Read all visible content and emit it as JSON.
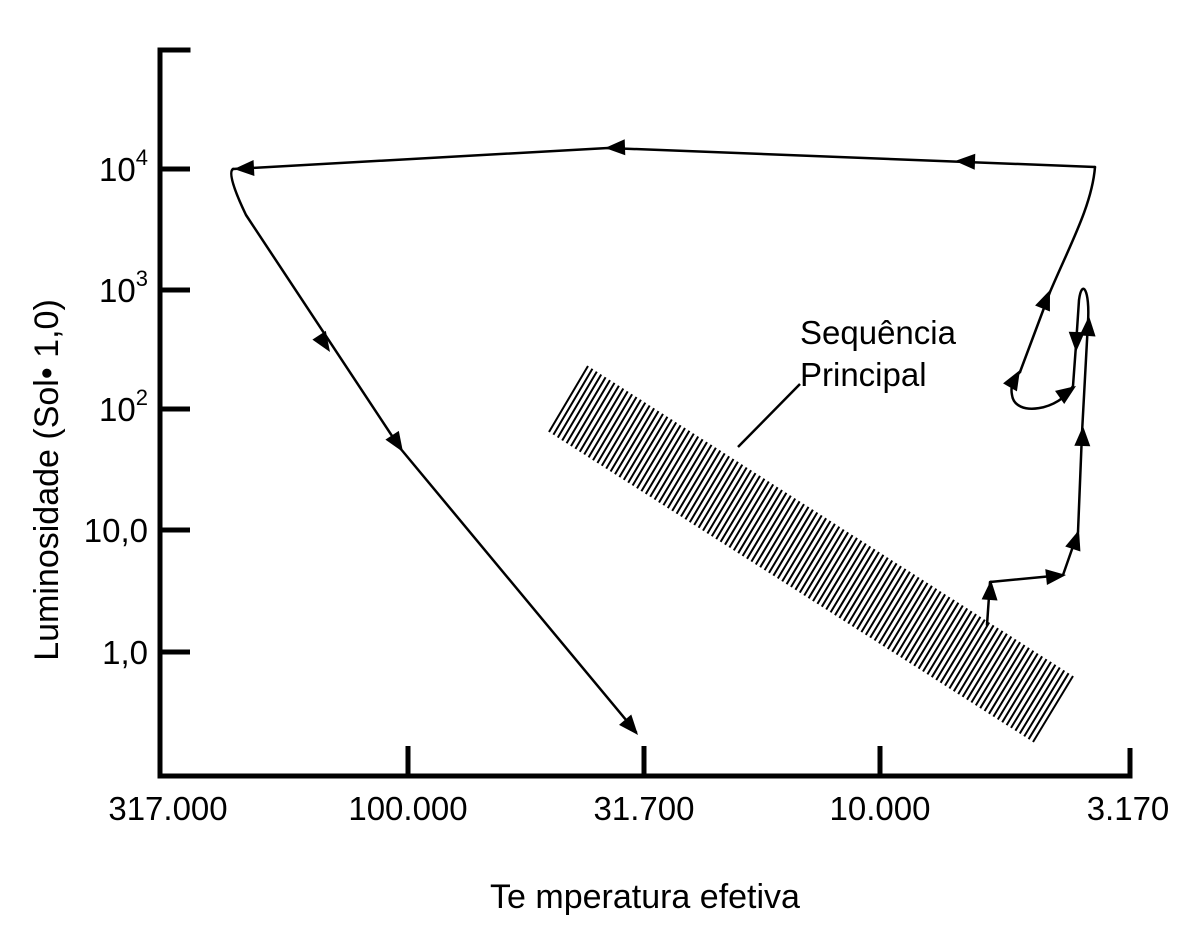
{
  "diagram": {
    "x_axis": {
      "title": "Te mperatura  efetiva",
      "ticks": [
        "317.000",
        "100.000",
        "31.700",
        "10.000",
        "3.170"
      ]
    },
    "y_axis": {
      "title": "Luminosidade  (Sol• 1,0)",
      "ticks": [
        {
          "base": "1,0",
          "exp": ""
        },
        {
          "base": "10,0",
          "exp": ""
        },
        {
          "base": "10",
          "exp": "2"
        },
        {
          "base": "10",
          "exp": "3"
        },
        {
          "base": "10",
          "exp": "4"
        }
      ]
    },
    "main_sequence_label": {
      "line1": "Sequência",
      "line2": "Principal"
    }
  }
}
